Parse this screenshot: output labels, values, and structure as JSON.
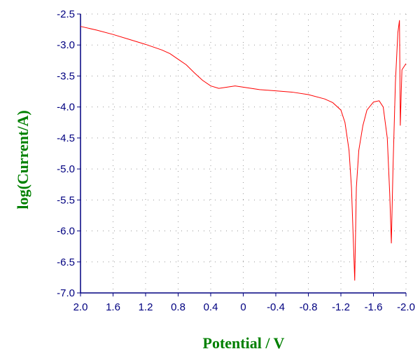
{
  "chart_data": {
    "type": "line",
    "xlabel": "Potential / V",
    "ylabel": "log(Current/A)",
    "xlim": [
      2.0,
      -2.0
    ],
    "ylim": [
      -7.0,
      -2.5
    ],
    "xticks": [
      {
        "value": 2.0,
        "label": "2.0"
      },
      1.6,
      1.2,
      0.8,
      0.4,
      0,
      -0.4,
      -0.8,
      -1.2,
      -1.6,
      {
        "value": -2.0,
        "label": "-2.0"
      }
    ],
    "yticks": [
      -2.5,
      {
        "value": -3.0,
        "label": "-3.0"
      },
      -3.5,
      {
        "value": -4.0,
        "label": "-4.0"
      },
      -4.5,
      {
        "value": -5.0,
        "label": "-5.0"
      },
      -5.5,
      {
        "value": -6.0,
        "label": "-6.0"
      },
      -6.5,
      {
        "value": -7.0,
        "label": "-7.0"
      }
    ],
    "grid": true,
    "series": [
      {
        "color": "#ff0000",
        "x": [
          2.0,
          1.8,
          1.6,
          1.4,
          1.2,
          1.0,
          0.9,
          0.8,
          0.7,
          0.6,
          0.5,
          0.4,
          0.3,
          0.2,
          0.1,
          0.0,
          -0.2,
          -0.4,
          -0.6,
          -0.8,
          -1.0,
          -1.1,
          -1.2,
          -1.25,
          -1.3,
          -1.33,
          -1.37,
          -1.39,
          -1.42,
          -1.47,
          -1.52,
          -1.6,
          -1.67,
          -1.72,
          -1.77,
          -1.8,
          -1.82,
          -1.84,
          -1.87,
          -1.9,
          -1.92,
          -1.93,
          -1.95,
          -2.0
        ],
        "values": [
          -2.7,
          -2.76,
          -2.83,
          -2.91,
          -2.99,
          -3.08,
          -3.14,
          -3.23,
          -3.32,
          -3.45,
          -3.57,
          -3.66,
          -3.7,
          -3.68,
          -3.66,
          -3.68,
          -3.72,
          -3.74,
          -3.76,
          -3.8,
          -3.87,
          -3.93,
          -4.05,
          -4.25,
          -4.7,
          -5.3,
          -6.8,
          -5.3,
          -4.7,
          -4.3,
          -4.05,
          -3.92,
          -3.9,
          -4.0,
          -4.5,
          -5.4,
          -6.2,
          -5.0,
          -3.6,
          -2.8,
          -2.6,
          -4.3,
          -3.4,
          -3.3
        ]
      }
    ]
  }
}
